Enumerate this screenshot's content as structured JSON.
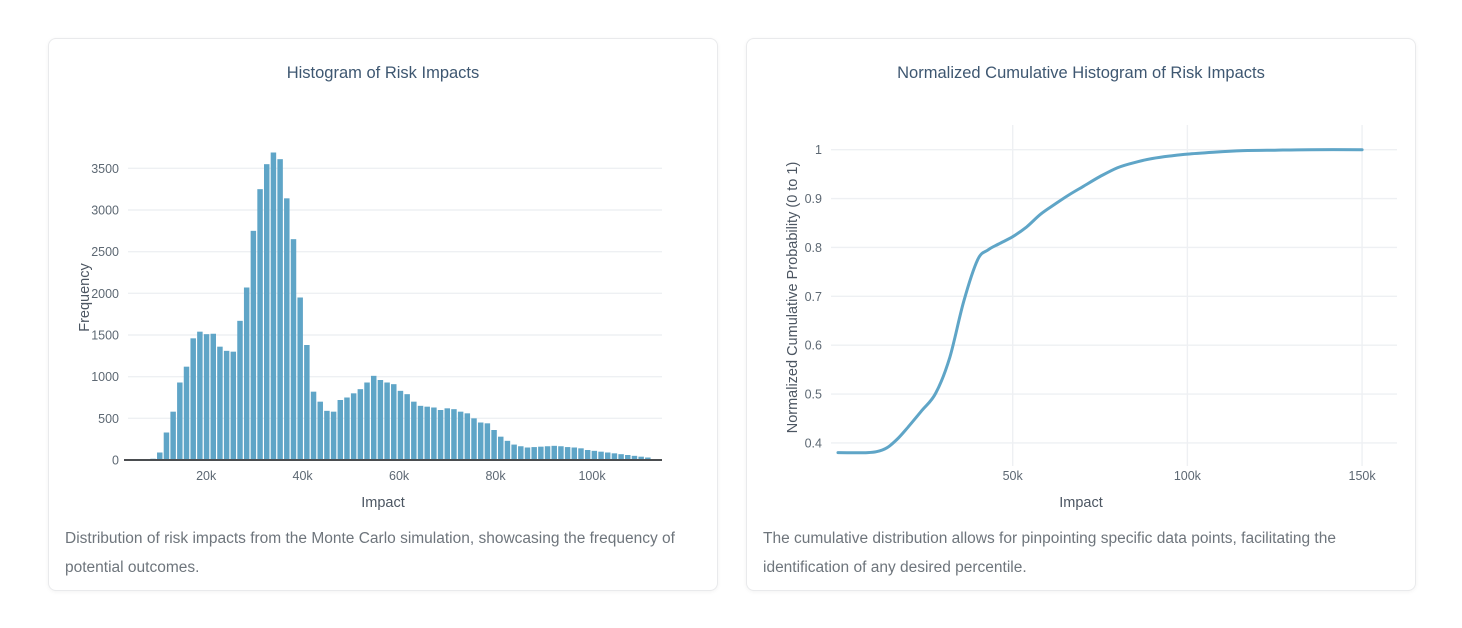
{
  "page": {
    "background": "#ffffff",
    "accent_blue": "#5fa5c7",
    "grid_color": "#eef0f3",
    "axis_line_color": "#4a4d50"
  },
  "chart_data": [
    {
      "type": "bar",
      "title": "Histogram of Risk Impacts",
      "xlabel": "Impact",
      "ylabel": "Frequency",
      "caption": "Distribution of risk impacts from the Monte Carlo simulation, showcasing the frequency of potential outcomes.",
      "bar_color": "#5fa5c7",
      "x_unit": "thousands",
      "x_start": 9.0,
      "x_step": 1.386,
      "values": [
        15,
        90,
        330,
        580,
        930,
        1120,
        1460,
        1540,
        1510,
        1515,
        1360,
        1310,
        1300,
        1670,
        2070,
        2750,
        3250,
        3550,
        3690,
        3610,
        3140,
        2650,
        1950,
        1380,
        820,
        700,
        590,
        580,
        720,
        750,
        800,
        850,
        930,
        1010,
        960,
        930,
        910,
        830,
        790,
        700,
        650,
        640,
        630,
        600,
        620,
        610,
        580,
        560,
        500,
        450,
        440,
        360,
        280,
        230,
        185,
        165,
        150,
        155,
        160,
        165,
        170,
        165,
        155,
        150,
        140,
        120,
        110,
        100,
        90,
        80,
        70,
        60,
        50,
        40,
        30
      ],
      "xlim": [
        3.8,
        114.5
      ],
      "ylim": [
        0,
        3900
      ],
      "xticks": [
        {
          "v": 20,
          "label": "20k"
        },
        {
          "v": 40,
          "label": "40k"
        },
        {
          "v": 60,
          "label": "60k"
        },
        {
          "v": 80,
          "label": "80k"
        },
        {
          "v": 100,
          "label": "100k"
        }
      ],
      "yticks": [
        {
          "v": 0,
          "label": "0"
        },
        {
          "v": 500,
          "label": "500"
        },
        {
          "v": 1000,
          "label": "1000"
        },
        {
          "v": 1500,
          "label": "1500"
        },
        {
          "v": 2000,
          "label": "2000"
        },
        {
          "v": 2500,
          "label": "2500"
        },
        {
          "v": 3000,
          "label": "3000"
        },
        {
          "v": 3500,
          "label": "3500"
        }
      ],
      "grid": "horizontal",
      "show_x_axis_line": true,
      "legend": "none"
    },
    {
      "type": "line",
      "title": "Normalized Cumulative Histogram of Risk Impacts",
      "xlabel": "Impact",
      "ylabel": "Normalized Cumulative Probability (0 to 1)",
      "caption": "The cumulative distribution allows for pinpointing specific data points, facilitating the identification of any desired percentile.",
      "line_color": "#5fa5c7",
      "line_width": 3,
      "x_unit": "thousands",
      "x": [
        0,
        4,
        8,
        11,
        14,
        17,
        20,
        24,
        28,
        32,
        36,
        40,
        43,
        46,
        50,
        54,
        58,
        62,
        66,
        70,
        75,
        80,
        85,
        90,
        95,
        100,
        108,
        116,
        125,
        135,
        150
      ],
      "y": [
        0.38,
        0.38,
        0.38,
        0.382,
        0.39,
        0.408,
        0.432,
        0.466,
        0.502,
        0.575,
        0.69,
        0.775,
        0.795,
        0.807,
        0.822,
        0.842,
        0.868,
        0.888,
        0.907,
        0.924,
        0.945,
        0.963,
        0.974,
        0.982,
        0.987,
        0.991,
        0.995,
        0.998,
        0.999,
        1.0,
        1.0
      ],
      "xlim": [
        -2,
        160
      ],
      "ylim": [
        0.365,
        1.03
      ],
      "xticks": [
        {
          "v": 50,
          "label": "50k"
        },
        {
          "v": 100,
          "label": "100k"
        },
        {
          "v": 150,
          "label": "150k"
        }
      ],
      "yticks": [
        {
          "v": 0.4,
          "label": "0.4"
        },
        {
          "v": 0.5,
          "label": "0.5"
        },
        {
          "v": 0.6,
          "label": "0.6"
        },
        {
          "v": 0.7,
          "label": "0.7"
        },
        {
          "v": 0.8,
          "label": "0.8"
        },
        {
          "v": 0.9,
          "label": "0.9"
        },
        {
          "v": 1,
          "label": "1"
        }
      ],
      "grid": "both",
      "show_x_axis_line": false,
      "legend": "none"
    }
  ]
}
